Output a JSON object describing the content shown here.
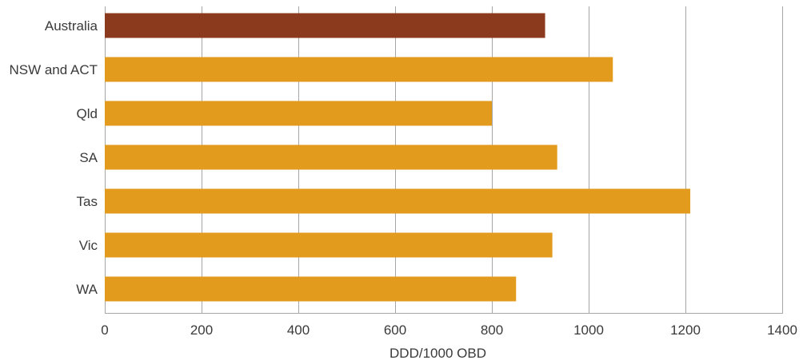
{
  "chart_data": {
    "type": "bar",
    "orientation": "horizontal",
    "categories": [
      "Australia",
      "NSW and ACT",
      "Qld",
      "SA",
      "Tas",
      "Vic",
      "WA"
    ],
    "values": [
      910,
      1050,
      800,
      935,
      1210,
      925,
      850
    ],
    "xlabel": "DDD/1000 OBD",
    "xlim": [
      0,
      1400
    ],
    "xticks": [
      0,
      200,
      400,
      600,
      800,
      1000,
      1200,
      1400
    ],
    "grid": "vertical",
    "colors": {
      "highlight": "#8B3A1E",
      "default": "#E29B1C",
      "grid": "#a6a6a6"
    },
    "highlight_category": "Australia"
  }
}
